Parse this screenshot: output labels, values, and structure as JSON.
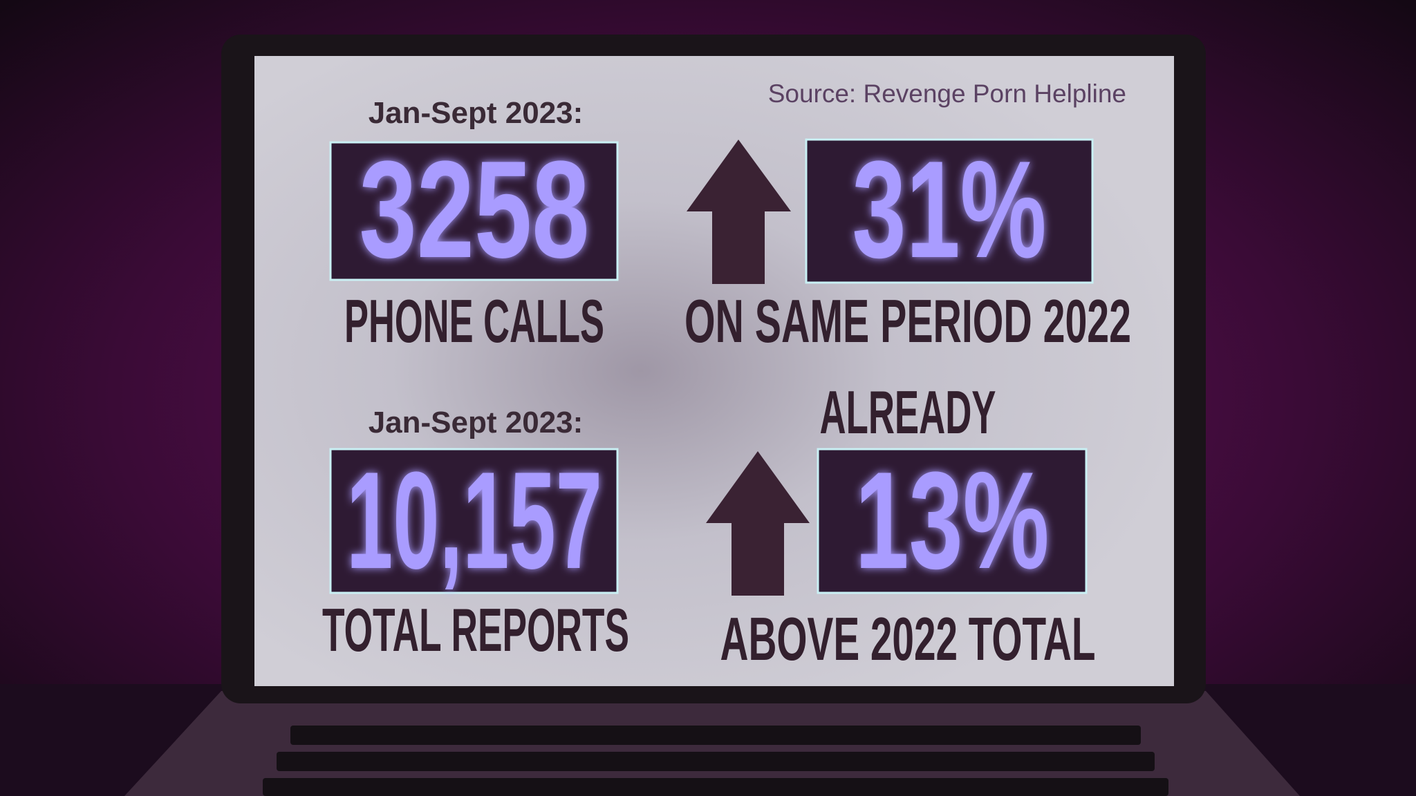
{
  "source": "Source: Revenge Porn Helpline",
  "stats": [
    {
      "period": "Jan-Sept 2023:",
      "value": "3258",
      "label": "PHONE CALLS",
      "change": "31%",
      "change_label": "ON SAME PERIOD 2022"
    },
    {
      "period": "Jan-Sept 2023:",
      "value": "10,157",
      "label": "TOTAL REPORTS",
      "change_prefix": "ALREADY",
      "change": "13%",
      "change_label": "ABOVE 2022 TOTAL"
    }
  ]
}
